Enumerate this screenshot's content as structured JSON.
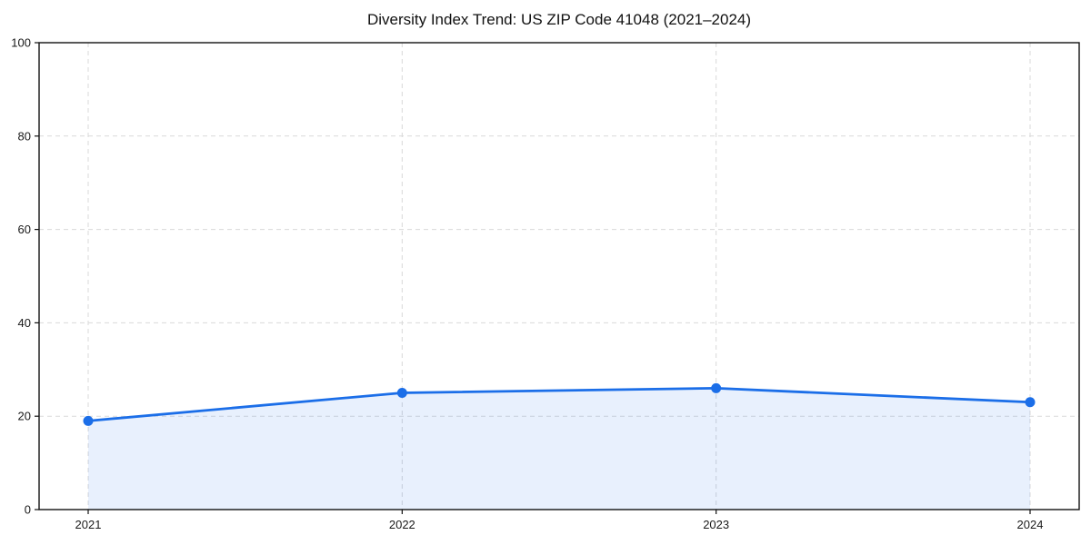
{
  "chart_data": {
    "type": "area",
    "title": "Diversity Index Trend: US ZIP Code 41048 (2021–2024)",
    "x": [
      "2021",
      "2022",
      "2023",
      "2024"
    ],
    "values": [
      19,
      25,
      26,
      23
    ],
    "xlabel": "",
    "ylabel": "",
    "ylim": [
      0,
      100
    ],
    "yticks": [
      0,
      20,
      40,
      60,
      80,
      100
    ],
    "grid": "dashed",
    "legend_position": "none",
    "colors": {
      "line": "#1b6ee8",
      "marker": "#1b6ee8",
      "fill": "rgba(27,110,232,0.10)",
      "gridline": "#d9d9d9",
      "spine": "#111111",
      "tick_label": "#1a1a1a",
      "title_text": "#111111",
      "background": "#ffffff"
    }
  }
}
